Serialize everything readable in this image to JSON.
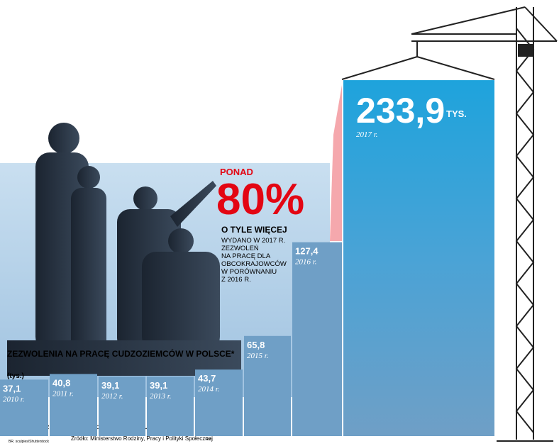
{
  "chart_data": {
    "type": "bar",
    "title": "ZEZWOLENIA NA PRACĘ CUDZOZIEMCÓW W POLSCE*",
    "subtitle": "(tys.)",
    "categories": [
      "2010 r.",
      "2011 r.",
      "2012 r.",
      "2013 r.",
      "2014 r.",
      "2015 r.",
      "2016 r.",
      "2017 r."
    ],
    "values": [
      37.1,
      40.8,
      39.1,
      39.1,
      43.7,
      65.8,
      127.4,
      233.9
    ],
    "value_labels": [
      "37,1",
      "40,8",
      "39,1",
      "39,1",
      "43,7",
      "65,8",
      "127,4",
      "233,9"
    ],
    "value_unit": "TYS.",
    "color": "#6f9fc6",
    "highlight_color": "#1ea3dc",
    "annotation": {
      "prefix": "PONAD",
      "big": "80%",
      "heading": "O TYLE WIĘCEJ",
      "lines": [
        "WYDANO W 2017 R.",
        "ZEZWOLEŃ",
        "NA PRACĘ DLA",
        "OBCOKRAJOWCÓW",
        "W PORÓWNANIU",
        "Z 2016 R."
      ]
    },
    "footnote": "* wydane przez wojewodów dla obywateli spoza UE i EOG",
    "source": "Źródło: Ministerstwo Rodziny, Pracy i Polityki Społecznej",
    "photo_credit": "BR. sculpies/Shutterstock",
    "author": "RM"
  }
}
